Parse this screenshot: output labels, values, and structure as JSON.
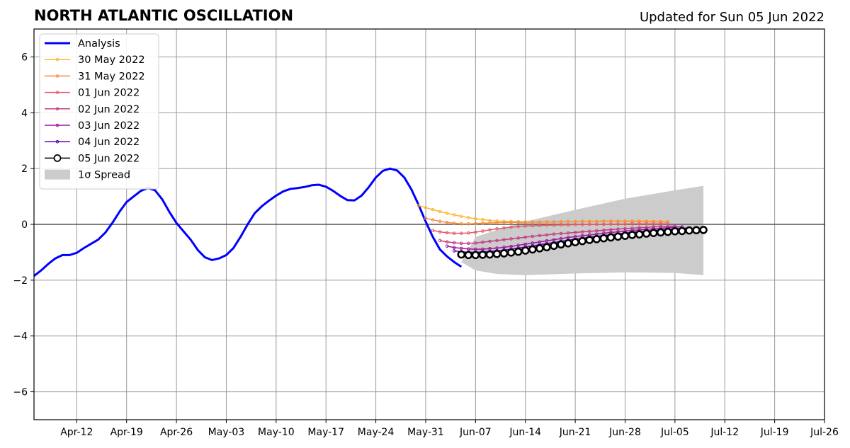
{
  "title": "NORTH ATLANTIC OSCILLATION",
  "subtitle": "Updated for Sun 05 Jun 2022",
  "chart_data": {
    "type": "line",
    "title": "NORTH ATLANTIC OSCILLATION",
    "xlabel": "",
    "ylabel": "",
    "x_unit": "date",
    "xlim": [
      "2022-04-06",
      "2022-07-26"
    ],
    "ylim": [
      -7,
      7
    ],
    "grid": true,
    "legend_position": "top-left",
    "x_ticks": [
      "2022-04-12",
      "2022-04-19",
      "2022-04-26",
      "2022-05-03",
      "2022-05-10",
      "2022-05-17",
      "2022-05-24",
      "2022-05-31",
      "2022-06-07",
      "2022-06-14",
      "2022-06-21",
      "2022-06-28",
      "2022-07-05",
      "2022-07-12",
      "2022-07-19",
      "2022-07-26"
    ],
    "x_tick_labels": [
      "Apr-12",
      "Apr-19",
      "Apr-26",
      "May-03",
      "May-10",
      "May-17",
      "May-24",
      "May-31",
      "Jun-07",
      "Jun-14",
      "Jun-21",
      "Jun-28",
      "Jul-05",
      "Jul-12",
      "Jul-19",
      "Jul-26"
    ],
    "y_ticks": [
      6,
      4,
      2,
      0,
      -2,
      -4,
      -6
    ],
    "y_tick_labels": [
      "6",
      "4",
      "2",
      "0",
      "−2",
      "−4",
      "−6"
    ],
    "series": [
      {
        "name": "Analysis",
        "color": "#0000ff",
        "style": "thick-line",
        "x": [
          "2022-04-06",
          "2022-04-07",
          "2022-04-08",
          "2022-04-09",
          "2022-04-10",
          "2022-04-11",
          "2022-04-12",
          "2022-04-13",
          "2022-04-14",
          "2022-04-15",
          "2022-04-16",
          "2022-04-17",
          "2022-04-18",
          "2022-04-19",
          "2022-04-20",
          "2022-04-21",
          "2022-04-22",
          "2022-04-23",
          "2022-04-24",
          "2022-04-25",
          "2022-04-26",
          "2022-04-27",
          "2022-04-28",
          "2022-04-29",
          "2022-04-30",
          "2022-05-01",
          "2022-05-02",
          "2022-05-03",
          "2022-05-04",
          "2022-05-05",
          "2022-05-06",
          "2022-05-07",
          "2022-05-08",
          "2022-05-09",
          "2022-05-10",
          "2022-05-11",
          "2022-05-12",
          "2022-05-13",
          "2022-05-14",
          "2022-05-15",
          "2022-05-16",
          "2022-05-17",
          "2022-05-18",
          "2022-05-19",
          "2022-05-20",
          "2022-05-21",
          "2022-05-22",
          "2022-05-23",
          "2022-05-24",
          "2022-05-25",
          "2022-05-26",
          "2022-05-27",
          "2022-05-28",
          "2022-05-29",
          "2022-05-30",
          "2022-05-31",
          "2022-06-01",
          "2022-06-02",
          "2022-06-03",
          "2022-06-04",
          "2022-06-05"
        ],
        "y": [
          -1.85,
          -1.65,
          -1.42,
          -1.22,
          -1.1,
          -1.1,
          -1.02,
          -0.85,
          -0.7,
          -0.55,
          -0.3,
          0.05,
          0.45,
          0.8,
          1.0,
          1.2,
          1.3,
          1.22,
          0.9,
          0.45,
          0.05,
          -0.25,
          -0.55,
          -0.92,
          -1.18,
          -1.28,
          -1.22,
          -1.1,
          -0.85,
          -0.45,
          0.0,
          0.4,
          0.65,
          0.85,
          1.03,
          1.18,
          1.27,
          1.3,
          1.34,
          1.4,
          1.42,
          1.35,
          1.2,
          1.02,
          0.87,
          0.86,
          1.03,
          1.33,
          1.68,
          1.92,
          2.0,
          1.93,
          1.68,
          1.25,
          0.7,
          0.1,
          -0.45,
          -0.9,
          -1.15,
          -1.35,
          -1.52
        ]
      },
      {
        "name": "30 May 2022",
        "color": "#fcb832",
        "style": "line-dots",
        "x_start": "2022-05-30",
        "x_end": "2022-07-04",
        "y": [
          0.68,
          0.6,
          0.53,
          0.46,
          0.4,
          0.34,
          0.29,
          0.24,
          0.2,
          0.17,
          0.14,
          0.12,
          0.11,
          0.1,
          0.1,
          0.09,
          0.09,
          0.09,
          0.09,
          0.09,
          0.1,
          0.1,
          0.1,
          0.11,
          0.11,
          0.11,
          0.12,
          0.12,
          0.12,
          0.12,
          0.12,
          0.12,
          0.12,
          0.11,
          0.11,
          0.1
        ]
      },
      {
        "name": "31 May 2022",
        "color": "#f98c40",
        "style": "line-dots",
        "x_start": "2022-05-31",
        "x_end": "2022-07-04",
        "y": [
          0.22,
          0.16,
          0.11,
          0.07,
          0.04,
          0.02,
          0.02,
          0.03,
          0.04,
          0.05,
          0.06,
          0.07,
          0.07,
          0.07,
          0.08,
          0.08,
          0.08,
          0.09,
          0.09,
          0.09,
          0.1,
          0.1,
          0.1,
          0.1,
          0.1,
          0.11,
          0.11,
          0.11,
          0.11,
          0.11,
          0.11,
          0.1,
          0.1,
          0.09,
          0.09
        ]
      },
      {
        "name": "01 Jun 2022",
        "color": "#e55c69",
        "style": "line-dots",
        "x_start": "2022-06-01",
        "x_end": "2022-07-04",
        "y": [
          -0.22,
          -0.27,
          -0.3,
          -0.32,
          -0.32,
          -0.31,
          -0.28,
          -0.24,
          -0.2,
          -0.16,
          -0.13,
          -0.1,
          -0.08,
          -0.06,
          -0.05,
          -0.04,
          -0.03,
          -0.03,
          -0.02,
          -0.02,
          -0.01,
          -0.01,
          0.0,
          0.0,
          0.0,
          0.01,
          0.01,
          0.01,
          0.02,
          0.02,
          0.02,
          0.02,
          0.02,
          0.02
        ]
      },
      {
        "name": "02 Jun 2022",
        "color": "#c33d80",
        "style": "line-dots",
        "x_start": "2022-06-02",
        "x_end": "2022-07-05",
        "y": [
          -0.58,
          -0.63,
          -0.66,
          -0.68,
          -0.68,
          -0.67,
          -0.64,
          -0.61,
          -0.58,
          -0.55,
          -0.52,
          -0.49,
          -0.46,
          -0.43,
          -0.4,
          -0.38,
          -0.35,
          -0.33,
          -0.31,
          -0.29,
          -0.27,
          -0.25,
          -0.23,
          -0.21,
          -0.19,
          -0.17,
          -0.15,
          -0.14,
          -0.12,
          -0.11,
          -0.09,
          -0.08,
          -0.07,
          -0.06
        ]
      },
      {
        "name": "03 Jun 2022",
        "color": "#9c179e",
        "style": "line-dots",
        "x_start": "2022-06-03",
        "x_end": "2022-07-06",
        "y": [
          -0.78,
          -0.83,
          -0.86,
          -0.88,
          -0.89,
          -0.89,
          -0.87,
          -0.85,
          -0.82,
          -0.79,
          -0.75,
          -0.71,
          -0.67,
          -0.63,
          -0.59,
          -0.55,
          -0.51,
          -0.47,
          -0.44,
          -0.41,
          -0.38,
          -0.35,
          -0.32,
          -0.29,
          -0.27,
          -0.24,
          -0.22,
          -0.2,
          -0.18,
          -0.16,
          -0.14,
          -0.12,
          -0.1,
          -0.09
        ]
      },
      {
        "name": "04 Jun 2022",
        "color": "#5c01a6",
        "style": "line-dots",
        "x_start": "2022-06-04",
        "x_end": "2022-07-07",
        "y": [
          -0.95,
          -0.98,
          -1.0,
          -1.0,
          -0.99,
          -0.97,
          -0.95,
          -0.92,
          -0.89,
          -0.85,
          -0.81,
          -0.77,
          -0.73,
          -0.69,
          -0.65,
          -0.61,
          -0.57,
          -0.53,
          -0.5,
          -0.46,
          -0.43,
          -0.4,
          -0.37,
          -0.34,
          -0.31,
          -0.29,
          -0.26,
          -0.24,
          -0.22,
          -0.2,
          -0.18,
          -0.16,
          -0.14,
          -0.13
        ]
      },
      {
        "name": "05 Jun 2022",
        "color": "#000000",
        "style": "line-circles",
        "x_start": "2022-06-05",
        "x_end": "2022-07-09",
        "y": [
          -1.08,
          -1.1,
          -1.1,
          -1.09,
          -1.08,
          -1.06,
          -1.04,
          -1.01,
          -0.98,
          -0.94,
          -0.9,
          -0.86,
          -0.82,
          -0.77,
          -0.72,
          -0.68,
          -0.64,
          -0.6,
          -0.56,
          -0.53,
          -0.5,
          -0.47,
          -0.44,
          -0.41,
          -0.38,
          -0.36,
          -0.33,
          -0.31,
          -0.29,
          -0.27,
          -0.25,
          -0.24,
          -0.22,
          -0.21,
          -0.2
        ]
      }
    ],
    "spread": {
      "name": "1σ Spread",
      "color": "#cccccc",
      "x": [
        "2022-06-05",
        "2022-06-07",
        "2022-06-10",
        "2022-06-14",
        "2022-06-21",
        "2022-06-28",
        "2022-07-05",
        "2022-07-09"
      ],
      "upper": [
        -1.35,
        -0.45,
        -0.2,
        0.1,
        0.52,
        0.92,
        1.22,
        1.38
      ],
      "lower": [
        -1.35,
        -1.65,
        -1.78,
        -1.82,
        -1.76,
        -1.72,
        -1.74,
        -1.82
      ]
    }
  }
}
